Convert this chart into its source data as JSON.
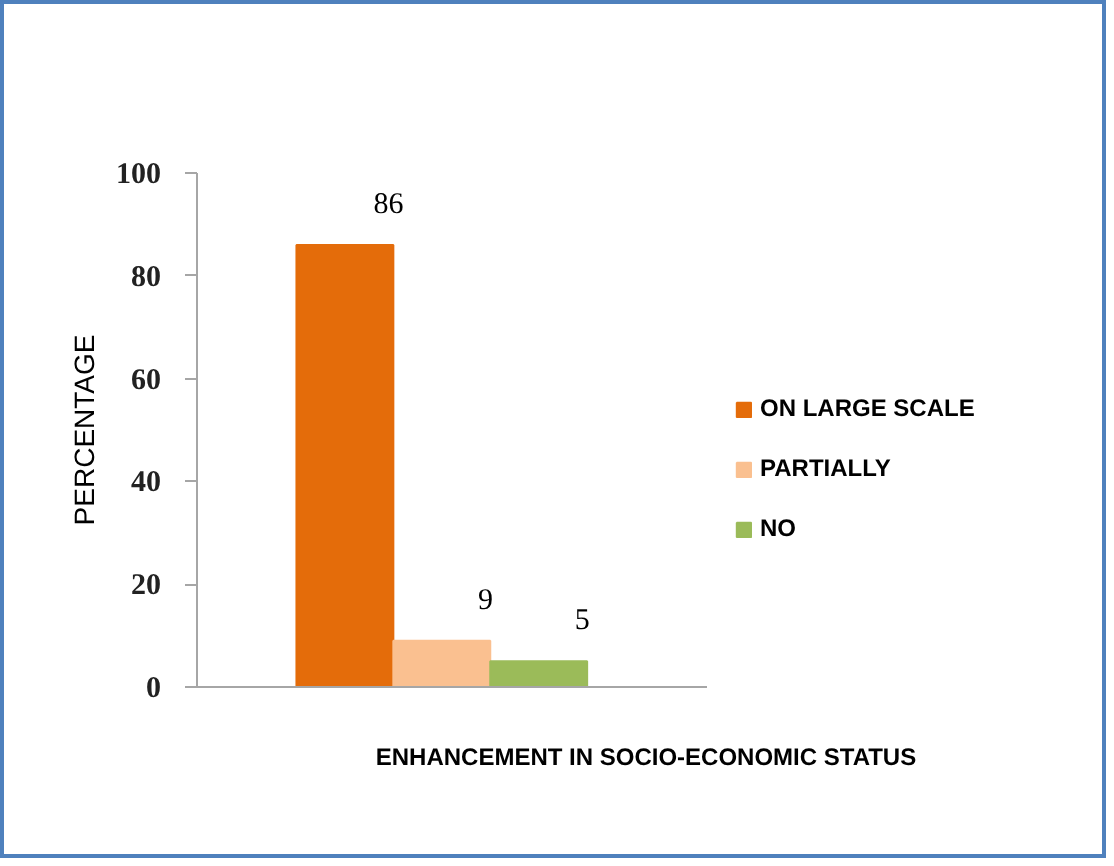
{
  "chart_data": {
    "type": "bar",
    "xlabel": "ENHANCEMENT IN SOCIO-ECONOMIC STATUS",
    "ylabel": "PERCENTAGE",
    "categories": [
      null
    ],
    "series": [
      {
        "name": "ON LARGE SCALE",
        "color": "#e46c0a",
        "values": [
          86
        ]
      },
      {
        "name": "PARTIALLY",
        "color": "#fac090",
        "values": [
          9
        ]
      },
      {
        "name": "NO",
        "color": "#9bbb59",
        "values": [
          5
        ]
      }
    ],
    "ylim": [
      0,
      100
    ],
    "yticks": [
      0,
      20,
      40,
      60,
      80,
      100
    ],
    "data_labels": true,
    "legend": "right",
    "grid": false
  }
}
